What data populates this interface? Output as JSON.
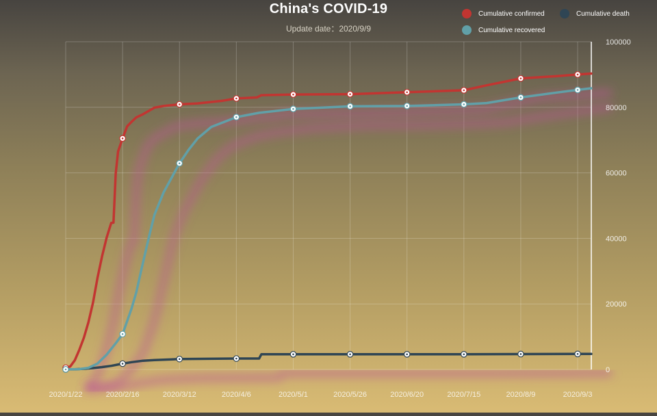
{
  "chart_data": {
    "type": "line",
    "title": "China's COVID-19",
    "subtitle": "Update date：2020/9/9",
    "x_ticks": [
      "2020/1/22",
      "2020/2/16",
      "2020/3/12",
      "2020/4/6",
      "2020/5/1",
      "2020/5/26",
      "2020/6/20",
      "2020/7/15",
      "2020/8/9",
      "2020/9/3"
    ],
    "y_ticks": [
      0,
      20000,
      40000,
      60000,
      80000,
      100000
    ],
    "ylim": [
      0,
      100000
    ],
    "x_range": [
      "2020/1/22",
      "2020/9/9"
    ],
    "y_axis_position": "right",
    "grid": true,
    "legend_position": "top-right",
    "series": [
      {
        "name": "Cumulative confirmed",
        "color": "#c23531",
        "x": [
          "2020/1/22",
          "2020/1/24",
          "2020/1/26",
          "2020/1/28",
          "2020/1/30",
          "2020/2/1",
          "2020/2/3",
          "2020/2/5",
          "2020/2/7",
          "2020/2/9",
          "2020/2/11",
          "2020/2/12",
          "2020/2/13",
          "2020/2/14",
          "2020/2/16",
          "2020/2/18",
          "2020/2/20",
          "2020/2/22",
          "2020/2/25",
          "2020/3/1",
          "2020/3/5",
          "2020/3/12",
          "2020/3/20",
          "2020/3/31",
          "2020/4/6",
          "2020/4/15",
          "2020/4/17",
          "2020/5/1",
          "2020/5/26",
          "2020/6/20",
          "2020/7/15",
          "2020/7/25",
          "2020/8/9",
          "2020/8/25",
          "2020/9/3",
          "2020/9/9"
        ],
        "y": [
          548,
          900,
          2800,
          6000,
          9700,
          14400,
          20400,
          28000,
          34600,
          40200,
          44700,
          44800,
          59800,
          66500,
          70500,
          74200,
          75600,
          76900,
          77900,
          79900,
          80400,
          80900,
          81200,
          82000,
          82700,
          83000,
          83700,
          83900,
          84000,
          84600,
          85200,
          86700,
          88800,
          89500,
          90000,
          90300
        ],
        "marked": [
          0,
          14,
          21,
          24,
          27,
          28,
          29,
          30,
          32,
          34
        ]
      },
      {
        "name": "Cumulative death",
        "color": "#2f4554",
        "x": [
          "2020/1/22",
          "2020/1/26",
          "2020/1/30",
          "2020/2/3",
          "2020/2/7",
          "2020/2/11",
          "2020/2/16",
          "2020/2/20",
          "2020/2/25",
          "2020/3/1",
          "2020/3/12",
          "2020/4/6",
          "2020/4/16",
          "2020/4/17",
          "2020/5/1",
          "2020/5/26",
          "2020/6/20",
          "2020/7/15",
          "2020/8/9",
          "2020/9/3",
          "2020/9/9"
        ],
        "y": [
          17,
          56,
          213,
          426,
          723,
          1113,
          1770,
          2236,
          2663,
          2870,
          3176,
          3335,
          3342,
          4632,
          4633,
          4634,
          4634,
          4634,
          4700,
          4739,
          4740
        ],
        "marked": [
          0,
          6,
          10,
          11,
          14,
          15,
          16,
          17,
          18,
          19
        ]
      },
      {
        "name": "Cumulative recovered",
        "color": "#61a0a8",
        "x": [
          "2020/1/22",
          "2020/1/28",
          "2020/2/1",
          "2020/2/5",
          "2020/2/9",
          "2020/2/13",
          "2020/2/16",
          "2020/2/20",
          "2020/2/22",
          "2020/2/24",
          "2020/2/28",
          "2020/3/1",
          "2020/3/5",
          "2020/3/12",
          "2020/3/16",
          "2020/3/20",
          "2020/3/26",
          "2020/4/6",
          "2020/4/16",
          "2020/5/1",
          "2020/5/26",
          "2020/6/20",
          "2020/7/15",
          "2020/7/25",
          "2020/8/9",
          "2020/8/25",
          "2020/9/3",
          "2020/9/9"
        ],
        "y": [
          28,
          100,
          500,
          1800,
          4500,
          8000,
          10800,
          18700,
          23500,
          29700,
          41600,
          47200,
          54000,
          62900,
          67000,
          70500,
          74000,
          77000,
          78300,
          79500,
          80300,
          80400,
          80900,
          81300,
          83000,
          84500,
          85300,
          85800
        ],
        "marked": [
          0,
          6,
          13,
          17,
          19,
          20,
          21,
          22,
          24,
          26
        ]
      }
    ]
  }
}
